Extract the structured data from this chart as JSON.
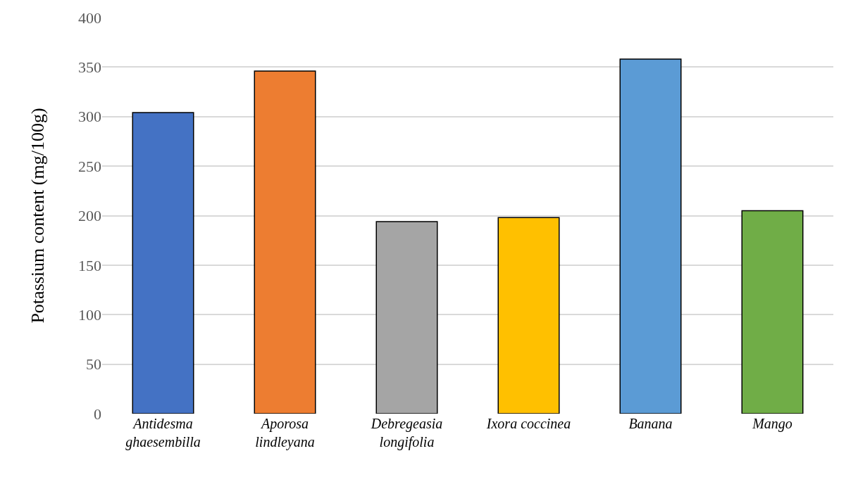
{
  "chart_data": {
    "type": "bar",
    "ylabel": "Potassium content (mg/100g)",
    "categories": [
      "Antidesma ghaesembilla",
      "Aporosa lindleyana",
      "Debregeasia longifolia",
      "Ixora coccinea",
      "Banana",
      "Mango"
    ],
    "values": [
      304,
      346,
      194,
      198,
      358,
      205
    ],
    "colors": [
      "#4472c4",
      "#ed7d31",
      "#a5a5a5",
      "#ffc000",
      "#5b9bd5",
      "#70ad47"
    ],
    "ylim": [
      0,
      400
    ],
    "yticks": [
      0,
      50,
      100,
      150,
      200,
      250,
      300,
      350,
      400
    ],
    "grid": "y"
  }
}
